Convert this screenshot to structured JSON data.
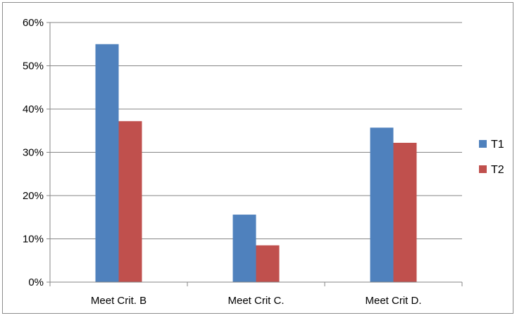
{
  "chart_data": {
    "type": "bar",
    "categories": [
      "Meet Crit. B",
      "Meet Crit C.",
      "Meet Crit D."
    ],
    "series": [
      {
        "name": "T1",
        "values": [
          0.55,
          0.156,
          0.357
        ],
        "color": "#4f81bd"
      },
      {
        "name": "T2",
        "values": [
          0.372,
          0.085,
          0.322
        ],
        "color": "#c0504d"
      }
    ],
    "y_ticks": [
      "0%",
      "10%",
      "20%",
      "30%",
      "40%",
      "50%",
      "60%"
    ],
    "ylim": [
      0,
      0.6
    ],
    "grid": true,
    "legend_position": "right"
  }
}
